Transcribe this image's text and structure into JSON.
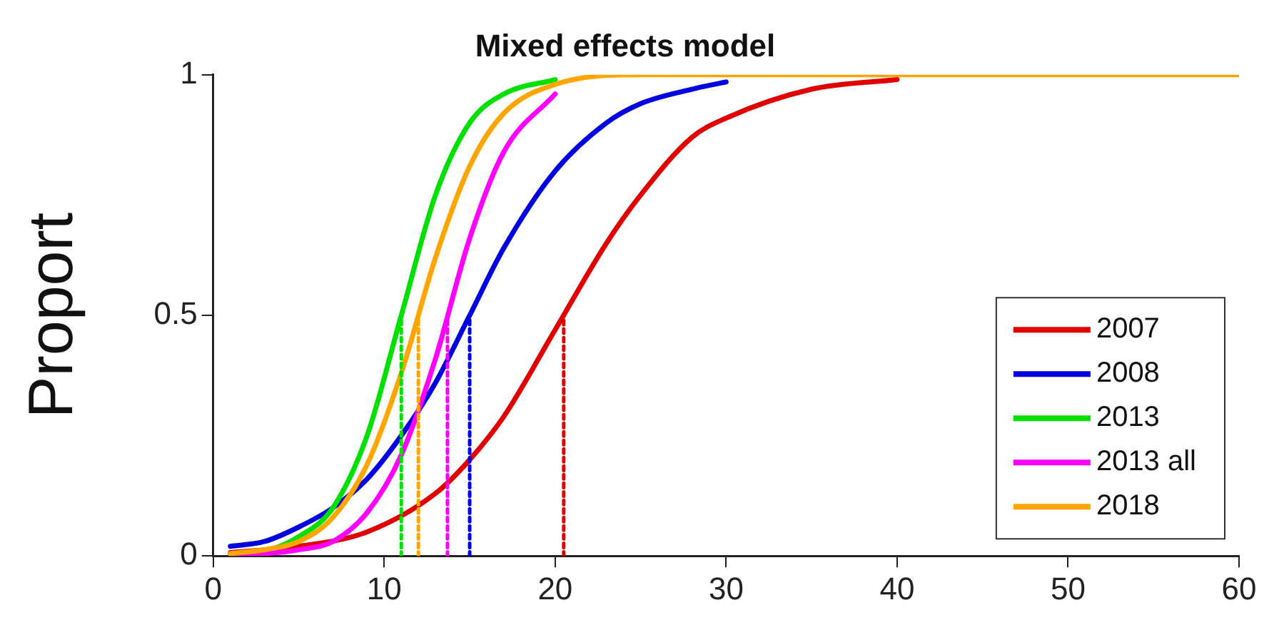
{
  "chart_data": {
    "type": "line",
    "title": "Mixed effects model",
    "ylabel": "Proport",
    "xlim": [
      0,
      60
    ],
    "xticks": [
      0,
      10,
      20,
      30,
      40,
      50,
      60
    ],
    "ylim": [
      0,
      1
    ],
    "yticks": [
      0,
      0.5,
      1
    ],
    "grid": false,
    "legend": "bottom right",
    "line_style": "solid",
    "marker": "none",
    "series": [
      {
        "name": "2007",
        "color": "#e00000",
        "x": [
          1,
          5,
          9,
          13,
          15,
          17,
          20,
          23,
          25,
          28,
          30,
          35,
          40
        ],
        "values": [
          0.007,
          0.02,
          0.05,
          0.13,
          0.2,
          0.29,
          0.47,
          0.65,
          0.75,
          0.87,
          0.91,
          0.97,
          0.99
        ]
      },
      {
        "name": "2008",
        "color": "#0000e0",
        "x": [
          1,
          3,
          5,
          7,
          9,
          11,
          13,
          15,
          17,
          20,
          23,
          25,
          28,
          30
        ],
        "values": [
          0.02,
          0.03,
          0.06,
          0.1,
          0.16,
          0.25,
          0.36,
          0.5,
          0.64,
          0.8,
          0.9,
          0.94,
          0.97,
          0.985
        ]
      },
      {
        "name": "2013",
        "color": "#00e000",
        "x": [
          1,
          3,
          5,
          7,
          9,
          11,
          13,
          15,
          17,
          20
        ],
        "values": [
          0.004,
          0.01,
          0.04,
          0.1,
          0.25,
          0.5,
          0.75,
          0.9,
          0.96,
          0.99
        ]
      },
      {
        "name": "2013 all",
        "color": "#ff00ff",
        "x": [
          1,
          3,
          5,
          7,
          9,
          11,
          13,
          15,
          17,
          20
        ],
        "values": [
          0.002,
          0.005,
          0.013,
          0.03,
          0.09,
          0.21,
          0.41,
          0.66,
          0.84,
          0.96
        ]
      },
      {
        "name": "2018",
        "color": "#ffa500",
        "x": [
          1,
          3,
          5,
          7,
          9,
          11,
          13,
          15,
          17,
          20,
          25,
          30,
          40,
          50,
          60
        ],
        "values": [
          0.005,
          0.013,
          0.03,
          0.08,
          0.19,
          0.38,
          0.62,
          0.81,
          0.92,
          0.98,
          1,
          1,
          1,
          1,
          1
        ]
      },
      {
        "color": "#e00000",
        "line_style": "dotted",
        "x": [
          20.5,
          20.5
        ],
        "values": [
          0,
          0.5
        ]
      },
      {
        "color": "#0000e0",
        "line_style": "dotted",
        "x": [
          15,
          15
        ],
        "values": [
          0,
          0.5
        ]
      },
      {
        "color": "#00e000",
        "line_style": "dotted",
        "x": [
          11,
          11
        ],
        "values": [
          0,
          0.5
        ]
      },
      {
        "color": "#ff00ff",
        "line_style": "dotted",
        "x": [
          13.7,
          13.7
        ],
        "values": [
          0,
          0.5
        ]
      },
      {
        "color": "#ffa500",
        "line_style": "dotted",
        "x": [
          12,
          12
        ],
        "values": [
          0,
          0.5
        ]
      }
    ]
  }
}
